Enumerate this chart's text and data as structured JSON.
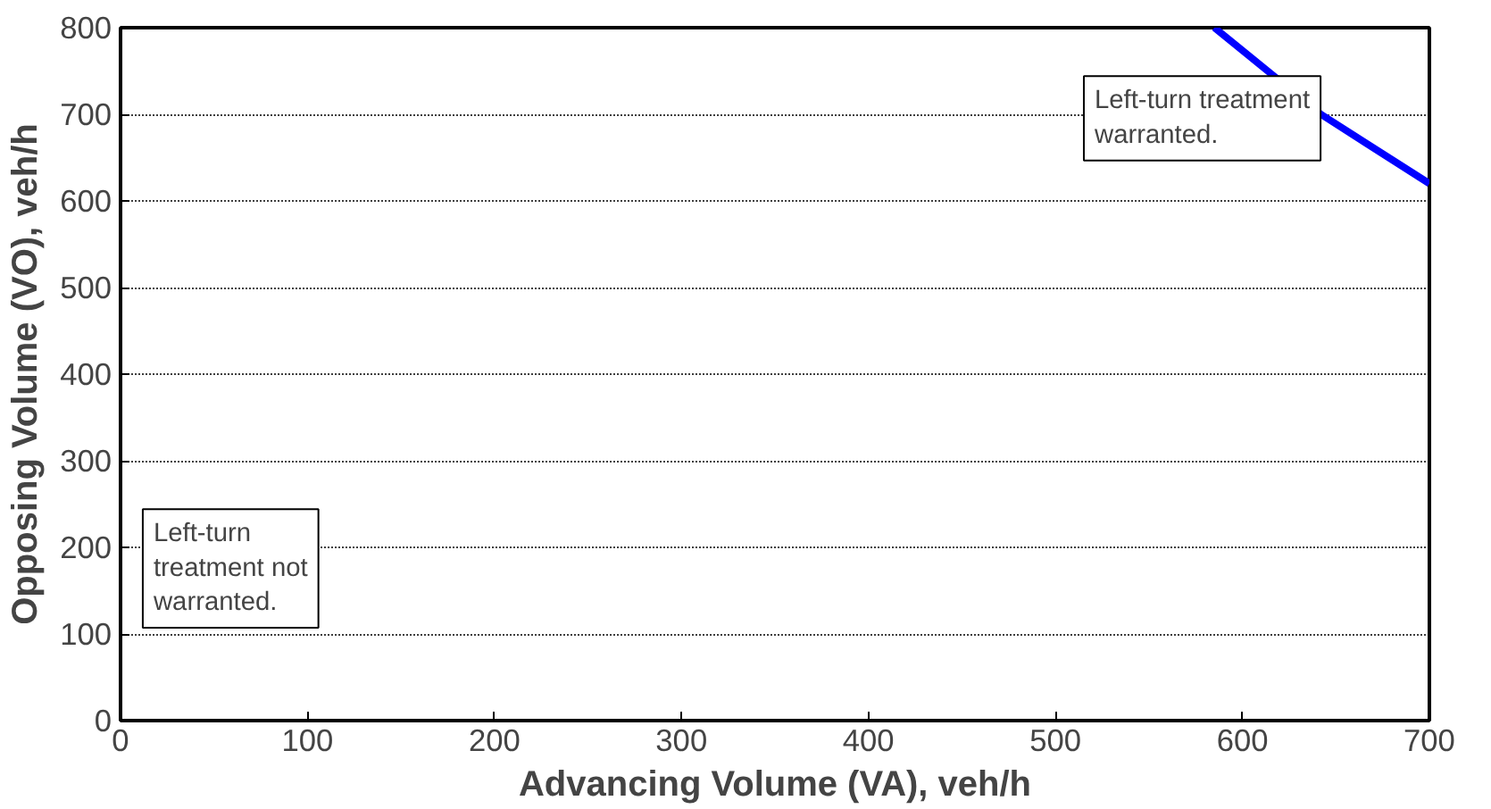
{
  "chart_data": {
    "type": "line",
    "xlabel": "Advancing Volume (VA), veh/h",
    "ylabel": "Opposing Volume (VO), veh/h",
    "series": [
      {
        "color": "#0000ff",
        "x": [
          585,
          642,
          700
        ],
        "values": [
          800,
          700,
          620
        ]
      }
    ],
    "xlim": [
      0,
      700
    ],
    "ylim": [
      0,
      800
    ],
    "xticks": [
      0,
      100,
      200,
      300,
      400,
      500,
      600,
      700
    ],
    "yticks": [
      0,
      100,
      200,
      300,
      400,
      500,
      600,
      700,
      800
    ],
    "grid": "y",
    "line_style": "solid",
    "marker": "none",
    "annotations": [
      "Left-turn treatment\nwarranted.",
      "Left-turn\ntreatment not\nwarranted."
    ]
  }
}
